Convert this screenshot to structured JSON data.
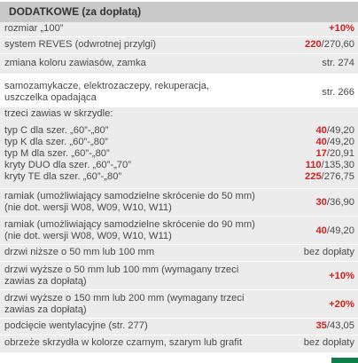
{
  "header": {
    "title": "DODATKOWE (za dopłatą)"
  },
  "rows": [
    {
      "label": "rozmiar „100”",
      "price_red": "+10%",
      "price_rest": ""
    },
    {
      "label": "system REVES (odwrotnej przylgi)",
      "price_red": "220",
      "price_rest": "/270,60"
    },
    {
      "label": "zmiana koloru zawiasów, zamka",
      "price_red": "",
      "price_rest": "str. 274"
    },
    {
      "label_line1": "samozamykacze, elektrozaczepy, rekuperacja,",
      "label_line2": "uszczelka opadająca",
      "price_red": "",
      "price_rest": "str. 266"
    },
    {
      "label": "trzeci zawias w skrzydle:"
    },
    {
      "label": "typ C dla szer. „60”-„80”",
      "price_red": "40",
      "price_rest": "/49,20"
    },
    {
      "label": "typ K dla szer. „60”-„80”",
      "price_red": "40",
      "price_rest": "/49,20"
    },
    {
      "label": "typ M dla szer. „60”-„80”",
      "price_red": "17",
      "price_rest": "/20,91"
    },
    {
      "label": "kryty DUO dla szer. „60”-„70”",
      "price_red": "110",
      "price_rest": "/135,30"
    },
    {
      "label": "kryty TE dla szer. „60”-„80”",
      "price_red": "225",
      "price_rest": "/276,75"
    },
    {
      "label_line1": "ramiak (umożliwiający samodzielne skrócenie do 50 mm)",
      "label_line2": "(nie dot. wersji W08, W09, W10, W11)",
      "price_red": "30",
      "price_rest": "/36,90"
    },
    {
      "label_line1": "ramiak (umożliwiający samodzielne skrócenie do 90 mm)",
      "label_line2": "(nie dot. wersji W08, W09, W10, W11)",
      "price_red": "40",
      "price_rest": "/49,20"
    },
    {
      "label": "drzwi niższe o 50 mm lub 100 mm",
      "price_red": "",
      "price_rest": "bez dopłaty"
    },
    {
      "label_line1": "drzwi wyższe o 50 mm lub 100 mm (wymagany trzeci",
      "label_line2": "zawias za dopłatą)",
      "price_red": "+10%",
      "price_rest": ""
    },
    {
      "label_line1": "drzwi wyższe o 150 mm lub 200 mm (wymagany trzeci",
      "label_line2": "zawias za dopłatą)",
      "price_red": "+20%",
      "price_rest": ""
    },
    {
      "label": "podcięcie wentylacyjne (str. 277)",
      "price_red": "35",
      "price_rest": "/43,05"
    },
    {
      "label": "obrzeże skrzydła w kolorze czarnym, szarym lub grafit",
      "price_red": "",
      "price_rest": "bez dopłaty"
    }
  ],
  "colors": {
    "header_bg": "#c9c9c9",
    "row_shade": "#ececec",
    "price_red": "#d81e1e",
    "brand_green": "#0e7f4a"
  }
}
